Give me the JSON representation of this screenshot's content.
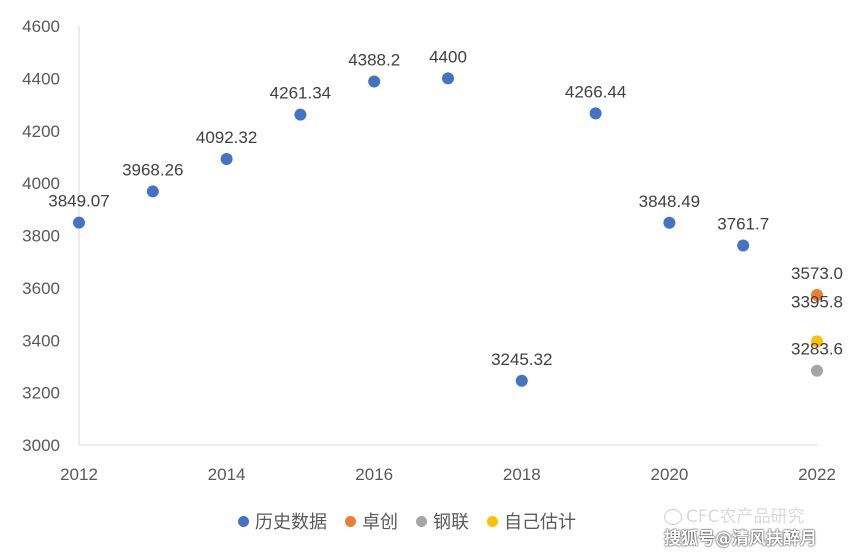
{
  "chart_data": {
    "type": "scatter",
    "title": "",
    "xlabel": "",
    "ylabel": "",
    "xlim": [
      2012,
      2022
    ],
    "ylim": [
      3000,
      4600
    ],
    "x_ticks": [
      "2012",
      "2014",
      "2016",
      "2018",
      "2020",
      "2022"
    ],
    "y_ticks": [
      "3000",
      "3200",
      "3400",
      "3600",
      "3800",
      "4000",
      "4200",
      "4400",
      "4600"
    ],
    "grid": false,
    "legend_position": "bottom",
    "series": [
      {
        "name": "历史数据",
        "color": "#4472C4",
        "points": [
          {
            "x": 2012,
            "y": 3849.07,
            "label": "3849.07"
          },
          {
            "x": 2013,
            "y": 3968.26,
            "label": "3968.26"
          },
          {
            "x": 2014,
            "y": 4092.32,
            "label": "4092.32"
          },
          {
            "x": 2015,
            "y": 4261.34,
            "label": "4261.34"
          },
          {
            "x": 2016,
            "y": 4388.2,
            "label": "4388.2"
          },
          {
            "x": 2017,
            "y": 4400,
            "label": "4400"
          },
          {
            "x": 2018,
            "y": 3245.32,
            "label": "3245.32"
          },
          {
            "x": 2019,
            "y": 4266.44,
            "label": "4266.44"
          },
          {
            "x": 2020,
            "y": 3848.49,
            "label": "3848.49"
          },
          {
            "x": 2021,
            "y": 3761.7,
            "label": "3761.7"
          }
        ]
      },
      {
        "name": "卓创",
        "color": "#ED7D31",
        "points": [
          {
            "x": 2022,
            "y": 3573.0,
            "label": "3573.0"
          }
        ]
      },
      {
        "name": "钢联",
        "color": "#A5A5A5",
        "points": [
          {
            "x": 2022,
            "y": 3283.6,
            "label": "3283.6"
          }
        ]
      },
      {
        "name": "自己估计",
        "color": "#FFC000",
        "points": [
          {
            "x": 2022,
            "y": 3395.8,
            "label": "3395.8"
          }
        ]
      }
    ]
  },
  "watermark": {
    "line1": "CFC农产品研究",
    "line2": "搜狐号@清风扶醉月"
  }
}
